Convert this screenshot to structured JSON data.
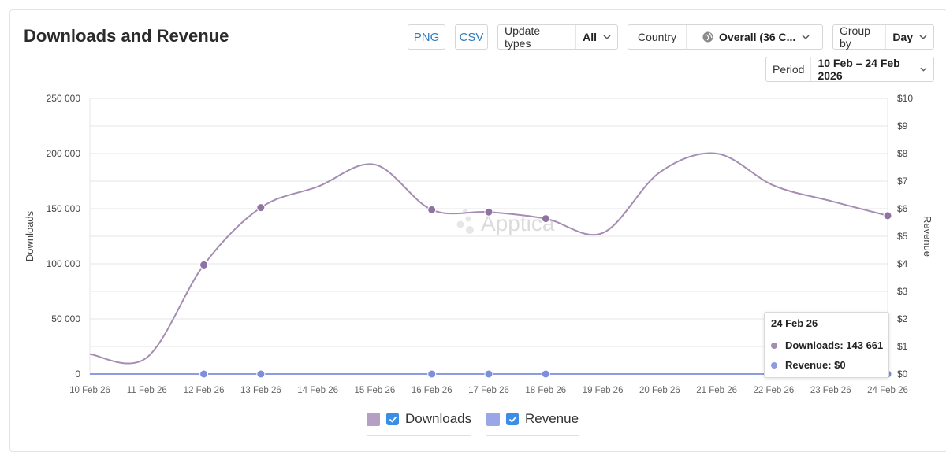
{
  "header": {
    "title": "Downloads and Revenue",
    "png_label": "PNG",
    "csv_label": "CSV",
    "update_types_label": "Update types",
    "update_types_value": "All",
    "country_label": "Country",
    "country_value": "Overall (36 C...",
    "group_by_label": "Group by",
    "group_by_value": "Day",
    "period_label": "Period",
    "period_value": "10 Feb – 24 Feb 2026"
  },
  "watermark": "Apptica",
  "tooltip": {
    "date": "24 Feb 26",
    "downloads_text": "Downloads: 143 661",
    "revenue_text": "Revenue: $0"
  },
  "legend": {
    "downloads_label": "Downloads",
    "revenue_label": "Revenue"
  },
  "colors": {
    "downloads": "#a58cb3",
    "downloads_marker": "#8f73a3",
    "revenue": "#8d9be0",
    "revenue_marker": "#7d8fdb",
    "grid": "#e6e6e6",
    "checkbox": "#3a8ee6"
  },
  "chart_data": {
    "type": "line",
    "ylabel": "Downloads",
    "y2label": "Revenue",
    "ylim": [
      0,
      250000
    ],
    "y2lim": [
      0,
      10
    ],
    "yticks": [
      "0",
      "50 000",
      "100 000",
      "150 000",
      "200 000",
      "250 000"
    ],
    "y2ticks": [
      "$0",
      "$1",
      "$2",
      "$3",
      "$4",
      "$5",
      "$6",
      "$7",
      "$8",
      "$9",
      "$10"
    ],
    "categories": [
      "10 Feb 26",
      "11 Feb 26",
      "12 Feb 26",
      "13 Feb 26",
      "14 Feb 26",
      "15 Feb 26",
      "16 Feb 26",
      "17 Feb 26",
      "18 Feb 26",
      "19 Feb 26",
      "20 Feb 26",
      "21 Feb 26",
      "22 Feb 26",
      "23 Feb 26",
      "24 Feb 26"
    ],
    "grid": true,
    "series": [
      {
        "name": "Downloads",
        "axis": "left",
        "values": [
          18000,
          15000,
          99000,
          151000,
          170000,
          190000,
          149000,
          147000,
          141000,
          128000,
          183000,
          200000,
          171000,
          157000,
          143661
        ],
        "markers": [
          2,
          3,
          6,
          7,
          8,
          14
        ]
      },
      {
        "name": "Revenue",
        "axis": "right",
        "values": [
          0,
          0,
          0,
          0,
          0,
          0,
          0,
          0,
          0,
          0,
          0,
          0,
          0,
          0,
          0
        ],
        "markers": [
          2,
          3,
          6,
          7,
          8,
          14
        ]
      }
    ]
  }
}
